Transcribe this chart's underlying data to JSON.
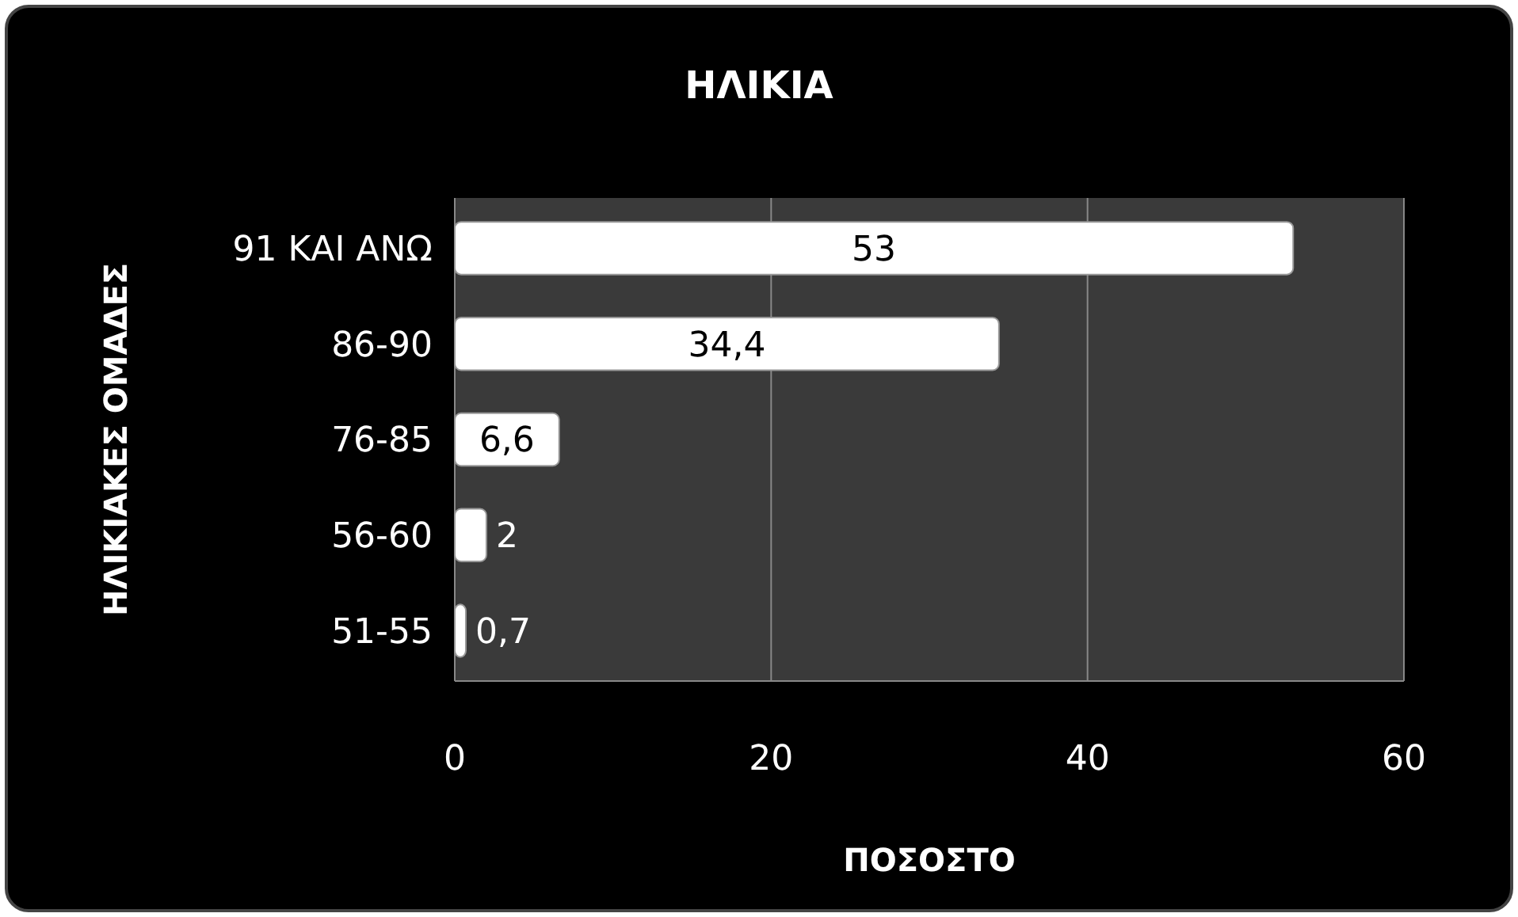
{
  "chart_data": {
    "type": "bar",
    "orientation": "horizontal",
    "title": "ΗΛΙΚΙΑ",
    "xlabel": "ΠΟΣΟΣΤΟ",
    "ylabel": "ΗΛΙΚΙΑΚΕΣ ΟΜΑΔΕΣ",
    "categories": [
      "91 ΚΑΙ ΑΝΩ",
      "86-90",
      "76-85",
      "56-60",
      "51-55"
    ],
    "values": [
      53,
      34.4,
      6.6,
      2,
      0.7
    ],
    "value_labels": [
      "53",
      "34,4",
      "6,6",
      "2",
      "0,7"
    ],
    "color": "#ffffff",
    "xlim": [
      0,
      60
    ],
    "xticks": [
      0,
      20,
      40,
      60
    ],
    "grid": "x"
  }
}
